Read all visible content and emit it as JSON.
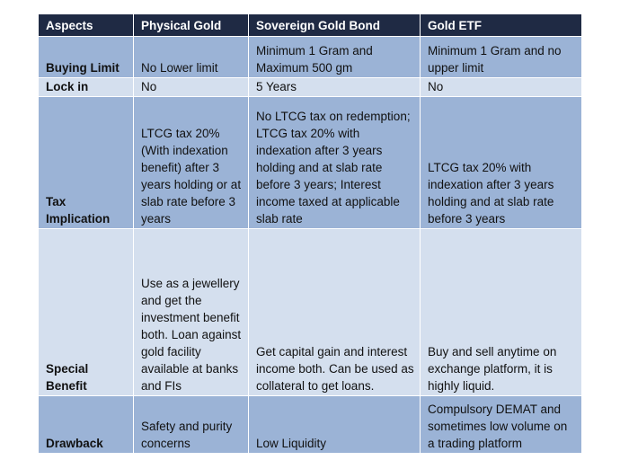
{
  "headers": [
    "Aspects",
    "Physical Gold",
    "Sovereign Gold Bond",
    "Gold ETF"
  ],
  "rows": [
    {
      "aspect": "Buying Limit",
      "physical_gold": "No Lower limit",
      "sovereign_gold_bond": "Minimum 1 Gram and Maximum 500 gm",
      "gold_etf": "Minimum 1 Gram and no upper limit"
    },
    {
      "aspect": "Lock in",
      "physical_gold": "No",
      "sovereign_gold_bond": "5 Years",
      "gold_etf": "No"
    },
    {
      "aspect": "Tax Implication",
      "physical_gold": "LTCG tax 20% (With indexation benefit) after 3 years holding or at slab rate before 3 years",
      "sovereign_gold_bond": "No LTCG tax on redemption; LTCG tax 20% with indexation after 3 years holding and at slab rate before 3 years; Interest income taxed at applicable slab rate",
      "gold_etf": "LTCG tax 20% with indexation after 3 years holding and at slab rate before 3 years"
    },
    {
      "aspect": "Special Benefit",
      "physical_gold": "Use as a jewellery and get the investment benefit both. Loan against gold facility available at banks and FIs",
      "sovereign_gold_bond": "Get capital gain and interest income both. Can be used as collateral to get loans.",
      "gold_etf": "Buy and sell anytime on exchange platform, it is highly liquid."
    },
    {
      "aspect": "Drawback",
      "physical_gold": "Safety and purity concerns",
      "sovereign_gold_bond": "Low Liquidity",
      "gold_etf": "Compulsory DEMAT and sometimes low volume on a trading platform"
    }
  ],
  "colors": {
    "header_bg": "#1f2a44",
    "header_text": "#ffffff",
    "row_dark": "#9bb3d6",
    "row_light": "#d4dfee"
  }
}
